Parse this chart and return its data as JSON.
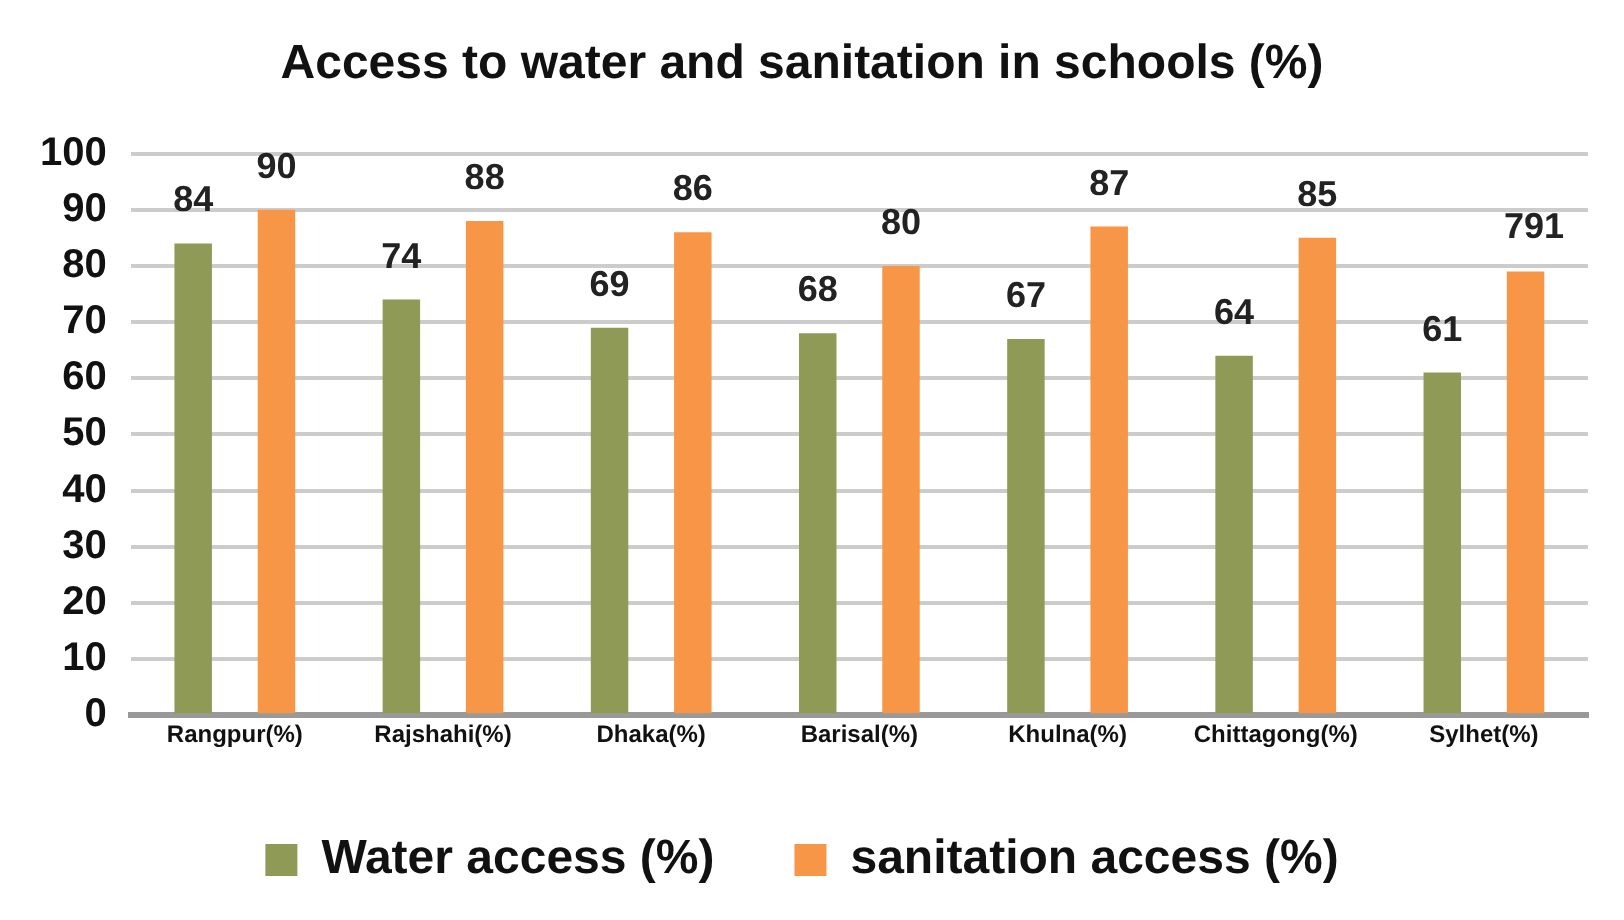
{
  "chart_data": {
    "type": "bar",
    "title": "Access to water and sanitation in schools (%)",
    "categories": [
      "Rangpur(%)",
      "Rajshahi(%)",
      "Dhaka(%)",
      "Barisal(%)",
      "Khulna(%)",
      "Chittagong(%)",
      "Sylhet(%)"
    ],
    "series": [
      {
        "name": "Water access (%)",
        "color": "#8f9a57",
        "values": [
          84,
          74,
          69,
          68,
          67,
          64,
          61
        ],
        "value_labels": [
          "84",
          "74",
          "69",
          "68",
          "67",
          "64",
          "61"
        ]
      },
      {
        "name": "sanitation access (%)",
        "color": "#f79646",
        "values": [
          90,
          88,
          86,
          80,
          87,
          85,
          79
        ],
        "value_labels": [
          "90",
          "88",
          "86",
          "80",
          "87",
          "85",
          null
        ]
      }
    ],
    "annotations": [
      "791"
    ],
    "ylim": [
      0,
      100
    ],
    "yticks": [
      0,
      10,
      20,
      30,
      40,
      50,
      60,
      70,
      80,
      90,
      100
    ],
    "grid": "y",
    "legend": "bottom"
  }
}
